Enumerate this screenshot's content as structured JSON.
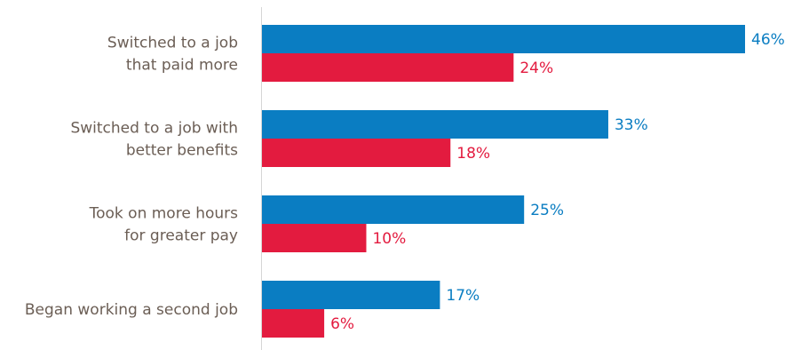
{
  "chart_data": {
    "type": "bar",
    "orientation": "horizontal",
    "categories": [
      [
        "Switched to a job",
        "that paid more"
      ],
      [
        "Switched to a job with",
        "better benefits"
      ],
      [
        "Took on more hours",
        "for greater pay"
      ],
      [
        "Began working a second job"
      ]
    ],
    "series": [
      {
        "values": [
          46,
          33,
          25,
          17
        ],
        "labels": [
          "46%",
          "33%",
          "25%",
          "17%"
        ],
        "color": "#0a7dc2"
      },
      {
        "values": [
          24,
          18,
          10,
          6
        ],
        "labels": [
          "24%",
          "18%",
          "10%",
          "6%"
        ],
        "color": "#e31b3f"
      }
    ],
    "title": "",
    "xlabel": "",
    "ylabel": "",
    "xlim": [
      0,
      46
    ],
    "grid": false,
    "legend": "none",
    "axis_color": "#d6d6d6",
    "category_label_color": "#6b5e55"
  }
}
